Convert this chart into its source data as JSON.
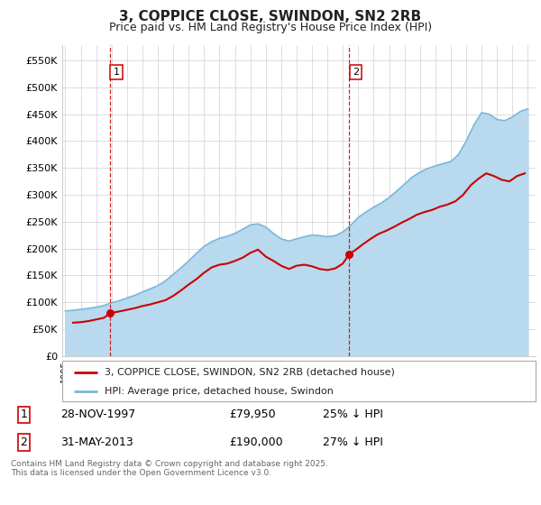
{
  "title": "3, COPPICE CLOSE, SWINDON, SN2 2RB",
  "subtitle": "Price paid vs. HM Land Registry's House Price Index (HPI)",
  "yticks": [
    0,
    50000,
    100000,
    150000,
    200000,
    250000,
    300000,
    350000,
    400000,
    450000,
    500000,
    550000
  ],
  "ytick_labels": [
    "£0",
    "£50K",
    "£100K",
    "£150K",
    "£200K",
    "£250K",
    "£300K",
    "£350K",
    "£400K",
    "£450K",
    "£500K",
    "£550K"
  ],
  "ylim": [
    0,
    578000
  ],
  "xlim_min": 1994.8,
  "xlim_max": 2025.5,
  "marker1_x": 1997.91,
  "marker1_y": 79950,
  "marker1_label": "1",
  "marker2_x": 2013.42,
  "marker2_y": 190000,
  "marker2_label": "2",
  "footer": "Contains HM Land Registry data © Crown copyright and database right 2025.\nThis data is licensed under the Open Government Licence v3.0.",
  "legend_property": "3, COPPICE CLOSE, SWINDON, SN2 2RB (detached house)",
  "legend_hpi": "HPI: Average price, detached house, Swindon",
  "property_color": "#cc0000",
  "hpi_color": "#7ab8d9",
  "hpi_fill_color": "#b8d9ee",
  "vline_color": "#cc0000",
  "background_color": "#ffffff",
  "grid_color": "#d0d0d0",
  "hpi_years": [
    1995,
    1995.5,
    1996,
    1996.5,
    1997,
    1997.5,
    1998,
    1998.5,
    1999,
    1999.5,
    2000,
    2000.5,
    2001,
    2001.5,
    2002,
    2002.5,
    2003,
    2003.5,
    2004,
    2004.5,
    2005,
    2005.5,
    2006,
    2006.5,
    2007,
    2007.5,
    2008,
    2008.5,
    2009,
    2009.5,
    2010,
    2010.5,
    2011,
    2011.5,
    2012,
    2012.5,
    2013,
    2013.5,
    2014,
    2014.5,
    2015,
    2015.5,
    2016,
    2016.5,
    2017,
    2017.5,
    2018,
    2018.5,
    2019,
    2019.5,
    2020,
    2020.5,
    2021,
    2021.5,
    2022,
    2022.5,
    2023,
    2023.5,
    2024,
    2024.5,
    2025
  ],
  "hpi_values": [
    84000,
    85000,
    87000,
    88500,
    91000,
    94000,
    99000,
    103000,
    108000,
    113000,
    119000,
    125000,
    131000,
    140000,
    152000,
    164000,
    177000,
    191000,
    204000,
    213000,
    219000,
    223000,
    228000,
    236000,
    244000,
    246000,
    240000,
    228000,
    218000,
    214000,
    218000,
    222000,
    225000,
    224000,
    222000,
    224000,
    231000,
    243000,
    258000,
    268000,
    277000,
    285000,
    295000,
    307000,
    320000,
    333000,
    342000,
    349000,
    354000,
    358000,
    362000,
    375000,
    400000,
    430000,
    453000,
    450000,
    440000,
    438000,
    445000,
    455000,
    460000
  ],
  "property_years": [
    1995.5,
    1996.0,
    1996.5,
    1997.0,
    1997.5,
    1997.91,
    1998.5,
    1999.0,
    1999.5,
    2000.0,
    2000.5,
    2001.0,
    2001.5,
    2002.0,
    2002.5,
    2003.0,
    2003.5,
    2004.0,
    2004.5,
    2005.0,
    2005.5,
    2006.0,
    2006.5,
    2007.0,
    2007.5,
    2008.0,
    2008.5,
    2009.0,
    2009.5,
    2010.0,
    2010.5,
    2011.0,
    2011.5,
    2012.0,
    2012.5,
    2013.0,
    2013.42,
    2013.8,
    2014.3,
    2014.8,
    2015.3,
    2015.8,
    2016.3,
    2016.8,
    2017.3,
    2017.8,
    2018.3,
    2018.8,
    2019.3,
    2019.8,
    2020.3,
    2020.8,
    2021.3,
    2021.8,
    2022.3,
    2022.8,
    2023.3,
    2023.8,
    2024.3,
    2024.8
  ],
  "property_values": [
    62000,
    63000,
    65000,
    68000,
    71000,
    79950,
    83000,
    86000,
    89000,
    93000,
    96000,
    100000,
    104000,
    112000,
    122000,
    133000,
    143000,
    155000,
    165000,
    170000,
    172000,
    177000,
    183000,
    192000,
    198000,
    185000,
    177000,
    168000,
    162000,
    168000,
    170000,
    167000,
    162000,
    160000,
    163000,
    172000,
    190000,
    197000,
    208000,
    218000,
    227000,
    233000,
    240000,
    248000,
    255000,
    263000,
    268000,
    272000,
    278000,
    282000,
    288000,
    300000,
    318000,
    330000,
    340000,
    335000,
    328000,
    325000,
    335000,
    340000
  ]
}
